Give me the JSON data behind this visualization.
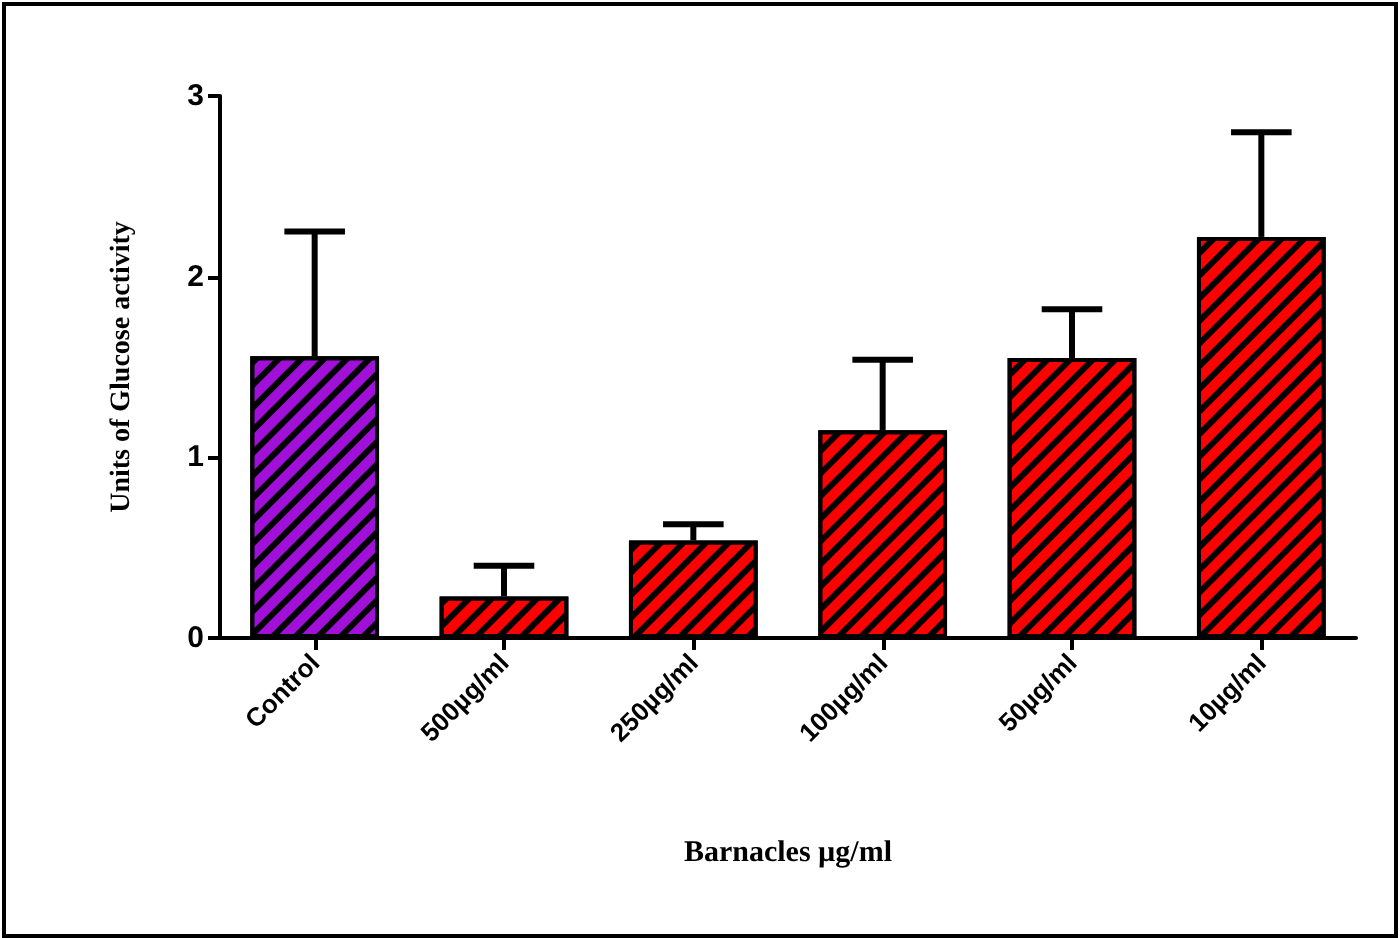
{
  "chart_data": {
    "type": "bar",
    "xlabel": "Barnacles µg/ml",
    "ylabel": "Units of Glucose activity",
    "categories": [
      "Control",
      "500µg/ml",
      "250µg/ml",
      "100µg/ml",
      "50µg/ml",
      "10µg/ml"
    ],
    "values": [
      1.56,
      0.23,
      0.54,
      1.15,
      1.55,
      2.22
    ],
    "colors": [
      "#a010d8",
      "#ff0000",
      "#ff0000",
      "#ff0000",
      "#ff0000",
      "#ff0000"
    ],
    "errors": [
      [
        1.56,
        2.25
      ],
      [
        0.23,
        0.4
      ],
      [
        0.54,
        0.63
      ],
      [
        1.15,
        1.54
      ],
      [
        1.55,
        1.82
      ],
      [
        2.22,
        2.8
      ]
    ],
    "ylim": [
      0,
      3
    ],
    "yticks": [
      0,
      1,
      2,
      3
    ],
    "grid": false
  }
}
